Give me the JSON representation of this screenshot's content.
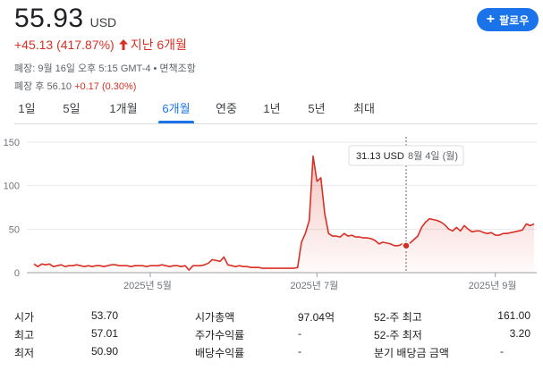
{
  "quote": {
    "price": "55.93",
    "currency": "USD",
    "change": "+45.13 (417.87%)",
    "period": "지난 6개월",
    "close_info": "폐장: 9월 16일 오후 5:15 GMT-4 • 면책조항",
    "after_hours_label": "폐장 후 56.10",
    "after_hours_change": "+0.17 (0.30%)"
  },
  "follow_button": {
    "label": "팔로우",
    "icon": "plus-icon"
  },
  "colors": {
    "accent": "#1a73e8",
    "negative": "#d93025",
    "line": "#d93025"
  },
  "tabs": [
    {
      "label": "1일",
      "active": false
    },
    {
      "label": "5일",
      "active": false
    },
    {
      "label": "1개월",
      "active": false
    },
    {
      "label": "6개월",
      "active": true
    },
    {
      "label": "연중",
      "active": false
    },
    {
      "label": "1년",
      "active": false
    },
    {
      "label": "5년",
      "active": false
    },
    {
      "label": "최대",
      "active": false
    }
  ],
  "chart_data": {
    "type": "area",
    "title": "",
    "xlabel": "",
    "ylabel": "",
    "ylim": [
      0,
      150
    ],
    "y_ticks": [
      0,
      50,
      100,
      150
    ],
    "x_ticks": [
      {
        "label": "2025년 5월",
        "index": 30
      },
      {
        "label": "2025년 7월",
        "index": 73
      },
      {
        "label": "2025년 9월",
        "index": 119
      }
    ],
    "tooltip": {
      "price": "31.13 USD",
      "date": "8월 4일 (월)",
      "index": 96
    },
    "series": [
      {
        "values": [
          10,
          7,
          10,
          9,
          10,
          7,
          8,
          9,
          7,
          8,
          8,
          9,
          8,
          7,
          8,
          7,
          8,
          8,
          7,
          8,
          9,
          9,
          8,
          8,
          8,
          7,
          8,
          8,
          8,
          7,
          8,
          8,
          8,
          9,
          8,
          7,
          8,
          8,
          7,
          8,
          3,
          8,
          8,
          8,
          9,
          11,
          15,
          14,
          13,
          18,
          9,
          8,
          7,
          8,
          7,
          7,
          6,
          6,
          6,
          5,
          5,
          5,
          5,
          5,
          5,
          5,
          5,
          5,
          6,
          35,
          45,
          60,
          134,
          105,
          109,
          68,
          45,
          42,
          42,
          41,
          45,
          42,
          43,
          41,
          41,
          40,
          40,
          39,
          37,
          33,
          35,
          34,
          33,
          31,
          31,
          33,
          31,
          34,
          38,
          42,
          52,
          58,
          62,
          61,
          60,
          58,
          55,
          50,
          48,
          52,
          48,
          54,
          50,
          47,
          48,
          48,
          46,
          45,
          46,
          43,
          43,
          45,
          45,
          46,
          47,
          48,
          49,
          56,
          54,
          56
        ]
      }
    ]
  },
  "stats": [
    {
      "label": "시가",
      "value": "53.70"
    },
    {
      "label": "최고",
      "value": "57.01"
    },
    {
      "label": "최저",
      "value": "50.90"
    },
    {
      "label": "시가총액",
      "value": "97.04억"
    },
    {
      "label": "주가수익률",
      "value": "-"
    },
    {
      "label": "배당수익률",
      "value": "-"
    },
    {
      "label": "52-주 최고",
      "value": "161.00"
    },
    {
      "label": "52-주 최저",
      "value": "3.20"
    },
    {
      "label": "분기 배당금 금액",
      "value": "-"
    }
  ]
}
